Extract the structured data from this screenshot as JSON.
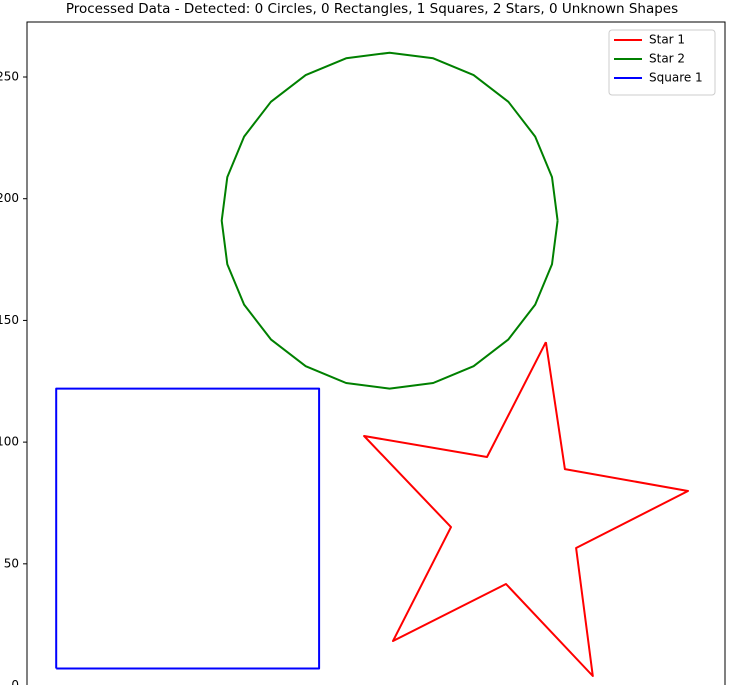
{
  "chart_data": {
    "type": "line",
    "title": "Processed Data - Detected: 0 Circles, 0 Rectangles, 1 Squares, 2 Stars, 0 Unknown Shapes",
    "xlim": [
      -2,
      284.8
    ],
    "ylim": [
      -8,
      272.6
    ],
    "yticks": [
      0,
      50,
      100,
      150,
      200,
      250
    ],
    "legend": "upper right",
    "series": [
      {
        "name": "Star 1",
        "color": "red",
        "x": [
          211.2,
          219.0,
          269.6,
          223.6,
          230.5,
          194.8,
          148.4,
          172.2,
          136.5,
          187,
          211.2
        ],
        "values": [
          141.1,
          88.9,
          79.9,
          56.5,
          3.9,
          41.7,
          18.3,
          65.1,
          102.5,
          93.9,
          141.1
        ]
      },
      {
        "name": "Star 2",
        "color": "green",
        "x": [
          216,
          213.7,
          206.8,
          195.8,
          181.5,
          164.9,
          147,
          129.1,
          112.5,
          98.2,
          87.2,
          80.3,
          78,
          80.3,
          87.2,
          98.2,
          112.5,
          129.1,
          147,
          164.9,
          181.5,
          195.8,
          206.8,
          213.7,
          216
        ],
        "values": [
          191,
          208.9,
          225.5,
          239.8,
          250.8,
          257.7,
          260,
          257.7,
          250.8,
          239.8,
          225.5,
          208.9,
          191,
          173.1,
          156.5,
          142.2,
          131.2,
          124.3,
          122,
          124.3,
          131.2,
          142.2,
          156.5,
          173.1,
          191
        ]
      },
      {
        "name": "Square 1",
        "color": "blue",
        "x": [
          10,
          118,
          118,
          10,
          10
        ],
        "values": [
          7,
          7,
          122,
          122,
          7
        ]
      }
    ]
  }
}
